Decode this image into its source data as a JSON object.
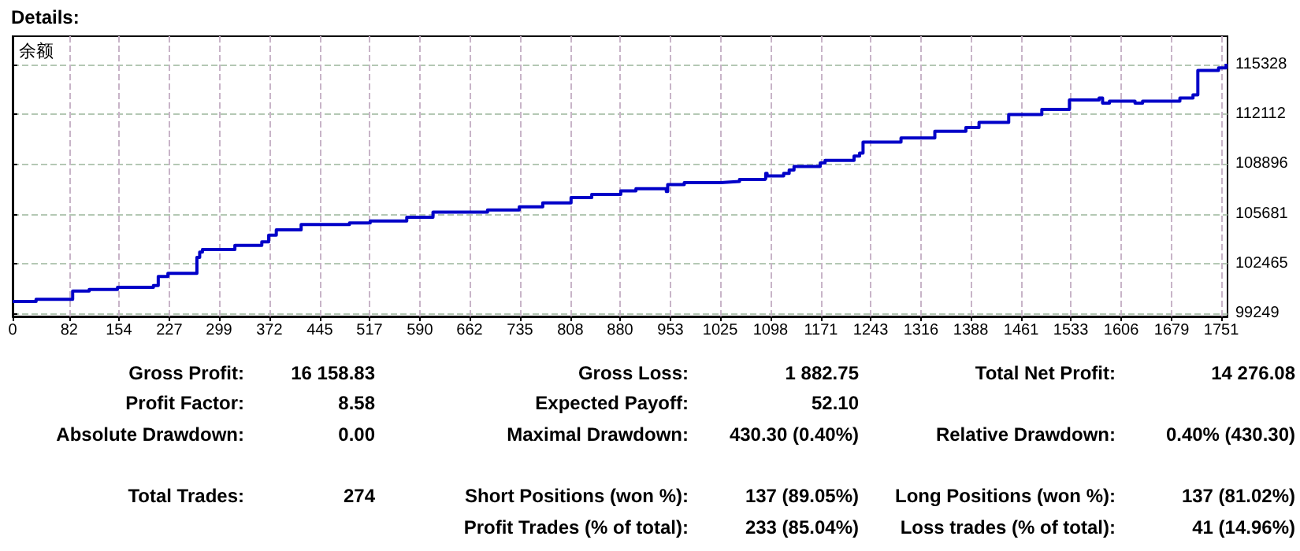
{
  "chart_data": {
    "type": "step",
    "title": "Details:",
    "ylabel": "余额",
    "x": [
      0,
      34,
      87,
      111,
      152,
      204,
      211,
      225,
      267,
      271,
      275,
      307,
      322,
      361,
      371,
      382,
      418,
      488,
      518,
      571,
      609,
      688,
      734,
      768,
      809,
      839,
      881,
      903,
      947,
      949,
      973,
      1026,
      1053,
      1090,
      1091,
      1093,
      1117,
      1125,
      1132,
      1170,
      1177,
      1219,
      1227,
      1232,
      1287,
      1336,
      1381,
      1400,
      1443,
      1491,
      1531,
      1574,
      1579,
      1589,
      1626,
      1637,
      1648,
      1691,
      1710,
      1717,
      1747,
      1758
    ],
    "series": [
      {
        "color": "#0000c8",
        "values": [
          100020,
          100150,
          100690,
          100790,
          100925,
          101050,
          101630,
          101830,
          102867,
          103200,
          103370,
          103370,
          103640,
          103870,
          104300,
          104640,
          104980,
          105080,
          105210,
          105450,
          105780,
          105920,
          106120,
          106385,
          106720,
          106920,
          107155,
          107290,
          107120,
          107557,
          107690,
          107760,
          107890,
          107950,
          108290,
          108125,
          108290,
          108500,
          108730,
          108965,
          109130,
          109400,
          109600,
          110300,
          110570,
          111010,
          111240,
          111580,
          112080,
          112415,
          113020,
          113150,
          112815,
          112950,
          112815,
          112950,
          112950,
          113150,
          113350,
          114927,
          115095,
          115360
        ]
      }
    ],
    "xlim": [
      0,
      1760
    ],
    "ylim": [
      99050,
      117140
    ],
    "xticks": [
      0,
      82,
      154,
      227,
      299,
      372,
      445,
      517,
      590,
      662,
      735,
      808,
      880,
      953,
      1025,
      1098,
      1171,
      1243,
      1316,
      1388,
      1461,
      1533,
      1606,
      1679,
      1751
    ],
    "yticks": [
      99249,
      102465,
      105681,
      108896,
      112112,
      115328
    ],
    "grid": true,
    "line_style": "solid",
    "annotations": [
      "Gross Profit:",
      "16 158.83",
      "Gross Loss:",
      "1 882.75",
      "Total Net Profit:",
      "14 276.08",
      "Profit Factor:",
      "8.58",
      "Expected Payoff:",
      "52.10",
      "Absolute Drawdown:",
      "0.00",
      "Maximal Drawdown:",
      "430.30 (0.40%)",
      "Relative Drawdown:",
      "0.40% (430.30)",
      "Total Trades:",
      "274",
      "Short Positions (won %):",
      "137 (89.05%)",
      "Long Positions (won %):",
      "137 (81.02%)",
      "Profit Trades (% of total):",
      "233 (85.04%)",
      "Loss trades (% of total):",
      "41 (14.96%)"
    ]
  }
}
